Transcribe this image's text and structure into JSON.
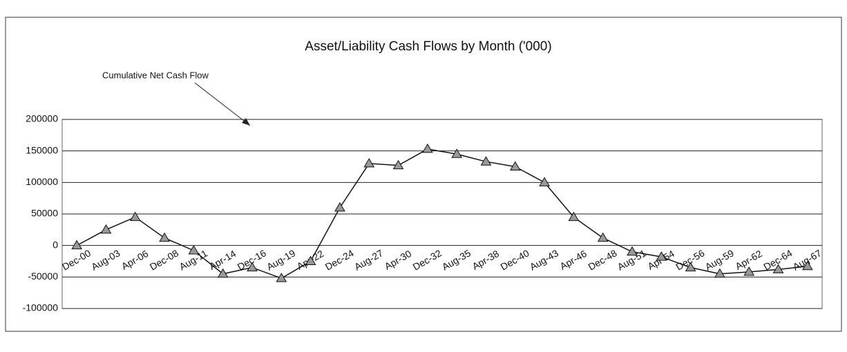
{
  "chart_data": {
    "type": "line",
    "title": "Asset/Liability Cash Flows by Month ('000)",
    "annotation": "Cumulative Net Cash Flow",
    "categories": [
      "Dec-00",
      "Aug-03",
      "Apr-06",
      "Dec-08",
      "Aug-11",
      "Apr-14",
      "Dec-16",
      "Aug-19",
      "Apr-22",
      "Dec-24",
      "Aug-27",
      "Apr-30",
      "Dec-32",
      "Aug-35",
      "Apr-38",
      "Dec-40",
      "Aug-43",
      "Apr-46",
      "Dec-48",
      "Aug-51",
      "Apr-54",
      "Dec-56",
      "Aug-59",
      "Apr-62",
      "Dec-64",
      "Aug-67"
    ],
    "values": [
      0,
      25000,
      45000,
      12000,
      -8000,
      -45000,
      -35000,
      -52000,
      -25000,
      60000,
      130000,
      127000,
      153000,
      145000,
      133000,
      125000,
      100000,
      45000,
      12000,
      -10000,
      -18000,
      -35000,
      -45000,
      -42000,
      -38000,
      -33000
    ],
    "color": "#111111",
    "ylim": [
      -100000,
      200000
    ],
    "yticks": [
      -100000,
      -50000,
      0,
      50000,
      100000,
      150000,
      200000
    ],
    "grid": true
  }
}
